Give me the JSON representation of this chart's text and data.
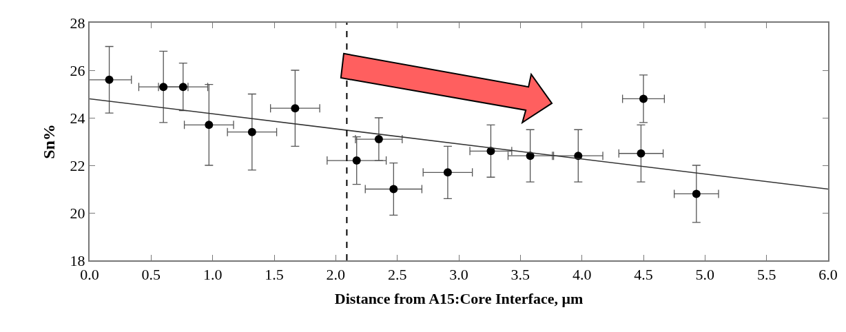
{
  "chart_data": {
    "type": "scatter",
    "xlabel": "Distance from A15:Core Interface, μm",
    "ylabel": "Sn%",
    "x": [
      0.16,
      0.6,
      0.76,
      0.97,
      1.32,
      1.67,
      2.17,
      2.35,
      2.47,
      2.91,
      3.26,
      3.58,
      3.97,
      4.5,
      4.48,
      4.93
    ],
    "series": [
      {
        "color": "#000000",
        "values": [
          25.6,
          25.3,
          25.3,
          23.7,
          23.4,
          24.4,
          22.2,
          23.1,
          21.0,
          21.7,
          22.6,
          22.4,
          22.4,
          24.8,
          22.5,
          20.8
        ],
        "errors": [
          1.4,
          1.5,
          1.0,
          1.7,
          1.6,
          1.6,
          1.0,
          0.9,
          1.1,
          1.1,
          1.1,
          1.1,
          1.1,
          1.0,
          1.2,
          1.2
        ],
        "xerrors": [
          0.18,
          0.2,
          0.2,
          0.2,
          0.2,
          0.2,
          0.24,
          0.19,
          0.23,
          0.2,
          0.17,
          0.18,
          0.2,
          0.17,
          0.18,
          0.18
        ]
      },
      {
        "type": "line",
        "marker": "none",
        "color": "#333333",
        "x": [
          0.0,
          6.0
        ],
        "values": [
          24.8,
          21.0
        ]
      }
    ],
    "xlim": [
      0.0,
      6.0
    ],
    "xticks": [
      {
        "value": 0,
        "label": "0.0"
      },
      0.5,
      {
        "value": 1,
        "label": "1.0"
      },
      1.5,
      {
        "value": 2,
        "label": "2.0"
      },
      2.5,
      {
        "value": 3,
        "label": "3.0"
      },
      3.5,
      {
        "value": 4,
        "label": "4.0"
      },
      4.5,
      {
        "value": 5,
        "label": "5.0"
      },
      5.5,
      {
        "value": 6,
        "label": "6.0"
      }
    ],
    "ylim": [
      18,
      28
    ],
    "yticks": [
      18,
      20,
      22,
      24,
      26,
      28
    ],
    "ref_lines": [
      {
        "axis": "x",
        "value": 2.09,
        "color": "#000000",
        "line_style": "dashed"
      }
    ],
    "marker": "circle"
  }
}
